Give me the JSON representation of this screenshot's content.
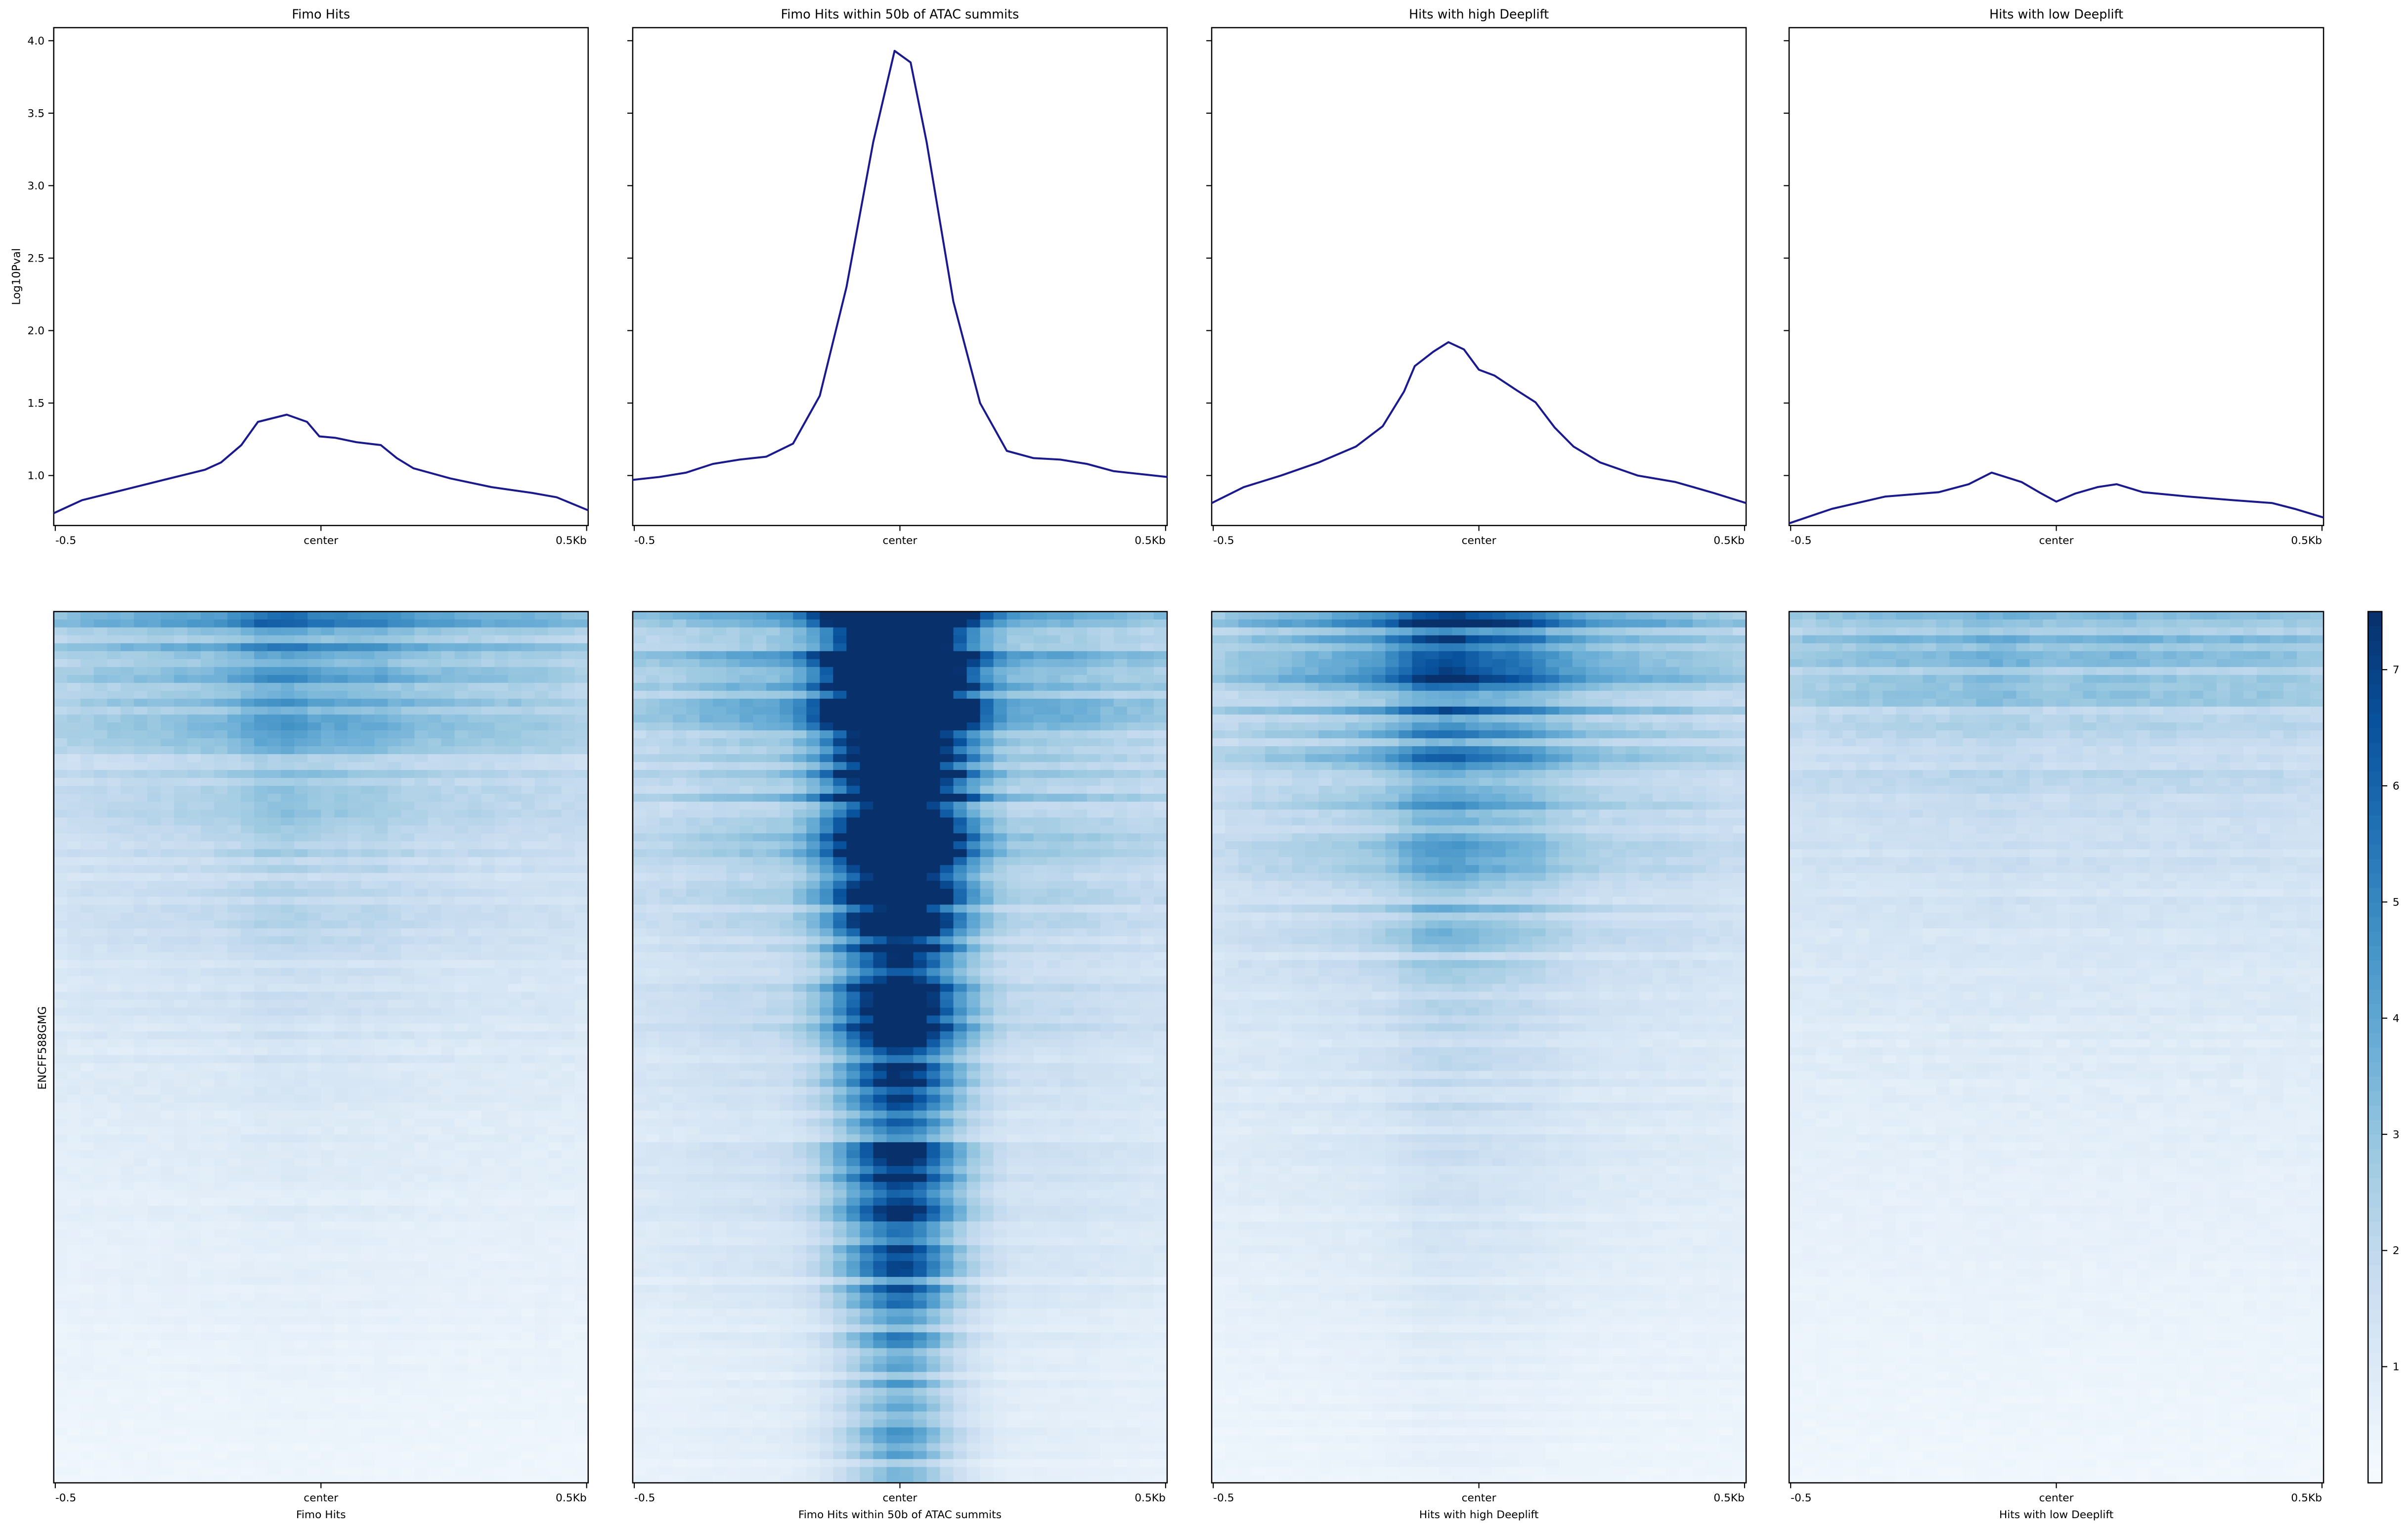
{
  "chart_data": [
    {
      "type": "line",
      "title": "Fimo Hits",
      "ylabel": "Log10Pval",
      "xlabel": "",
      "xticks": [
        "-0.5",
        "center",
        "0.5Kb"
      ],
      "xlim": [
        -0.5,
        0.5
      ],
      "ylim": [
        0.655,
        4.09
      ],
      "yticks": [
        "1.0",
        "1.5",
        "2.0",
        "2.5",
        "3.0",
        "3.5",
        "4.0"
      ],
      "line_color": "#1a1a8c",
      "x": [
        -0.5,
        -0.447,
        -0.37,
        -0.294,
        -0.217,
        -0.187,
        -0.149,
        -0.118,
        -0.064,
        -0.026,
        -0.003,
        0.027,
        0.066,
        0.112,
        0.142,
        0.173,
        0.242,
        0.319,
        0.395,
        0.441,
        0.5
      ],
      "y": [
        0.74,
        0.83,
        0.9,
        0.97,
        1.04,
        1.09,
        1.21,
        1.37,
        1.42,
        1.37,
        1.27,
        1.26,
        1.23,
        1.21,
        1.12,
        1.05,
        0.98,
        0.92,
        0.88,
        0.85,
        0.76
      ]
    },
    {
      "type": "line",
      "title": "Fimo Hits within 50b of ATAC summits",
      "xlabel": "",
      "xticks": [
        "-0.5",
        "center",
        "0.5Kb"
      ],
      "xlim": [
        -0.5,
        0.5
      ],
      "ylim": [
        0.655,
        4.09
      ],
      "line_color": "#1a1a8c",
      "x": [
        -0.5,
        -0.45,
        -0.4,
        -0.35,
        -0.3,
        -0.25,
        -0.2,
        -0.15,
        -0.1,
        -0.05,
        -0.01,
        0.02,
        0.05,
        0.1,
        0.15,
        0.2,
        0.25,
        0.3,
        0.35,
        0.4,
        0.45,
        0.5
      ],
      "y": [
        0.97,
        0.99,
        1.02,
        1.08,
        1.11,
        1.13,
        1.22,
        1.55,
        2.3,
        3.3,
        3.93,
        3.85,
        3.3,
        2.2,
        1.5,
        1.17,
        1.12,
        1.11,
        1.08,
        1.03,
        1.01,
        0.99
      ]
    },
    {
      "type": "line",
      "title": "Hits with high Deeplift",
      "xlabel": "",
      "xticks": [
        "-0.5",
        "center",
        "0.5Kb"
      ],
      "xlim": [
        -0.5,
        0.5
      ],
      "ylim": [
        0.655,
        4.09
      ],
      "line_color": "#1a1a8c",
      "x": [
        -0.5,
        -0.44,
        -0.37,
        -0.3,
        -0.23,
        -0.18,
        -0.14,
        -0.12,
        -0.085,
        -0.057,
        -0.028,
        0.0,
        0.029,
        0.07,
        0.106,
        0.142,
        0.177,
        0.227,
        0.297,
        0.368,
        0.439,
        0.5
      ],
      "y": [
        0.81,
        0.92,
        1.0,
        1.09,
        1.2,
        1.34,
        1.58,
        1.755,
        1.855,
        1.92,
        1.87,
        1.73,
        1.69,
        1.59,
        1.505,
        1.33,
        1.2,
        1.09,
        1.0,
        0.955,
        0.88,
        0.81
      ]
    },
    {
      "type": "line",
      "title": "Hits with low Deeplift",
      "xlabel": "",
      "xticks": [
        "-0.5",
        "center",
        "0.5Kb"
      ],
      "xlim": [
        -0.5,
        0.5
      ],
      "ylim": [
        0.655,
        4.09
      ],
      "line_color": "#1a1a8c",
      "x": [
        -0.5,
        -0.42,
        -0.32,
        -0.22,
        -0.164,
        -0.121,
        -0.065,
        -0.03,
        0.0,
        0.035,
        0.077,
        0.113,
        0.162,
        0.247,
        0.33,
        0.404,
        0.446,
        0.5
      ],
      "y": [
        0.67,
        0.77,
        0.855,
        0.885,
        0.94,
        1.02,
        0.955,
        0.88,
        0.82,
        0.875,
        0.92,
        0.94,
        0.885,
        0.855,
        0.83,
        0.81,
        0.77,
        0.71
      ]
    },
    {
      "type": "heatmap",
      "ylabel": "ENCFF588GMG",
      "panels": [
        {
          "xlabel": "Fimo Hits",
          "xticks": [
            "-0.5",
            "center",
            "0.5Kb"
          ]
        },
        {
          "xlabel": "Fimo Hits within 50b of ATAC summits",
          "xticks": [
            "-0.5",
            "center",
            "0.5Kb"
          ]
        },
        {
          "xlabel": "Hits with high Deeplift",
          "xticks": [
            "-0.5",
            "center",
            "0.5Kb"
          ]
        },
        {
          "xlabel": "Hits with low Deeplift",
          "xticks": [
            "-0.5",
            "center",
            "0.5Kb"
          ]
        }
      ],
      "colormap": "Blues",
      "colormap_stops": [
        "#f7fbff",
        "#deebf7",
        "#c6dbef",
        "#9ecae1",
        "#6baed6",
        "#4292c6",
        "#2171b5",
        "#08519c",
        "#08306b"
      ],
      "colorbar": {
        "range": [
          0,
          7.5
        ],
        "ticks": [
          "1",
          "2",
          "3",
          "4",
          "5",
          "6",
          "7"
        ]
      }
    }
  ]
}
